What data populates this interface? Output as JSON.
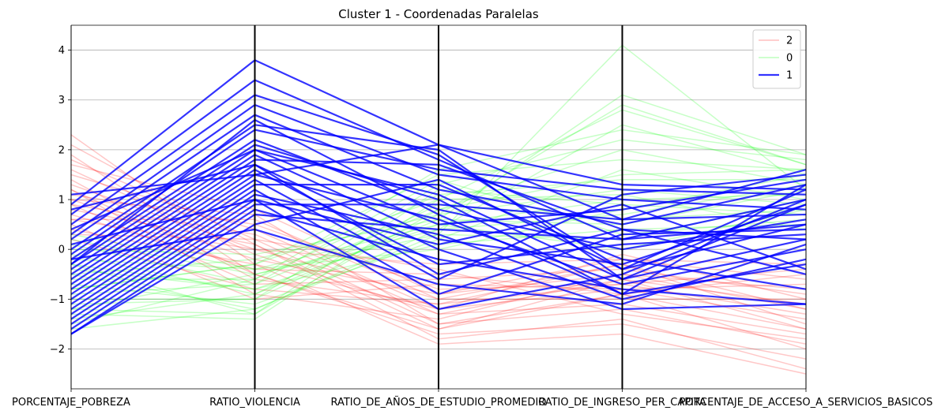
{
  "chart_data": {
    "type": "line",
    "subtype": "parallel-coordinates",
    "title": "Cluster 1 - Coordenadas Paralelas",
    "axes": [
      "PORCENTAJE_POBREZA",
      "RATIO_VIOLENCIA",
      "RATIO_DE_AÑOS_DE_ESTUDIO_PROMEDIO",
      "RATIO_DE_INGRESO_PER_CAPITA",
      "PORCENTAJE_DE_ACCESO_A_SERVICIOS_BASICOS"
    ],
    "ylim": [
      -2.8,
      4.5
    ],
    "yticks": [
      -2,
      -1,
      0,
      1,
      2,
      3,
      4
    ],
    "grid": "horizontal",
    "legend_position": "top-right",
    "series": [
      {
        "name": "2",
        "color": "#ff0000",
        "opacity": 0.22,
        "emphasized": false,
        "lines": [
          [
            2.3,
            -0.3,
            -1.9,
            -1.7,
            -2.5
          ],
          [
            2.1,
            0.1,
            -1.8,
            -1.4,
            -2.4
          ],
          [
            1.9,
            -0.5,
            -1.6,
            -0.9,
            -2.0
          ],
          [
            1.8,
            0.2,
            -1.5,
            -1.2,
            -1.9
          ],
          [
            1.6,
            -0.1,
            -1.3,
            -0.6,
            -1.6
          ],
          [
            1.5,
            0.4,
            -1.2,
            -0.8,
            -1.4
          ],
          [
            1.4,
            -0.6,
            -1.1,
            -0.3,
            -1.2
          ],
          [
            1.3,
            0.0,
            -1.0,
            -1.0,
            -1.0
          ],
          [
            1.2,
            -0.9,
            -1.4,
            -0.5,
            -0.8
          ],
          [
            1.1,
            0.5,
            -0.8,
            -0.7,
            -1.3
          ],
          [
            1.0,
            -0.2,
            -0.9,
            -0.2,
            -0.6
          ],
          [
            0.9,
            0.3,
            -1.3,
            -1.1,
            -1.7
          ],
          [
            0.9,
            -0.7,
            -0.6,
            -0.4,
            -0.9
          ],
          [
            0.8,
            0.1,
            -1.6,
            -0.6,
            -1.1
          ],
          [
            0.7,
            -0.4,
            -0.5,
            -0.9,
            -0.5
          ],
          [
            0.6,
            0.6,
            -1.0,
            -0.3,
            -1.5
          ],
          [
            0.5,
            -1.0,
            -0.7,
            -0.8,
            -0.7
          ],
          [
            0.4,
            -0.3,
            -1.2,
            -0.1,
            -1.0
          ],
          [
            0.3,
            0.2,
            -0.4,
            -1.3,
            -1.8
          ],
          [
            0.2,
            -0.8,
            -1.1,
            -0.7,
            -0.4
          ],
          [
            1.7,
            0.8,
            -0.9,
            -0.5,
            -1.2
          ],
          [
            1.2,
            -0.5,
            -1.7,
            -1.5,
            -2.2
          ],
          [
            0.6,
            0.0,
            -0.3,
            -0.2,
            -0.3
          ],
          [
            1.0,
            0.7,
            -1.5,
            -0.9,
            -1.6
          ]
        ]
      },
      {
        "name": "0",
        "color": "#00ff00",
        "opacity": 0.22,
        "emphasized": false,
        "lines": [
          [
            -1.6,
            -1.2,
            0.3,
            4.1,
            1.2
          ],
          [
            -1.4,
            -0.9,
            0.6,
            3.1,
            1.9
          ],
          [
            -1.3,
            -1.4,
            1.0,
            2.8,
            1.7
          ],
          [
            -1.2,
            -0.5,
            0.4,
            2.5,
            1.5
          ],
          [
            -1.0,
            -1.0,
            1.3,
            2.2,
            1.8
          ],
          [
            -0.9,
            -0.7,
            0.8,
            2.0,
            1.3
          ],
          [
            -0.8,
            -0.3,
            1.5,
            1.8,
            1.6
          ],
          [
            -0.7,
            -1.1,
            0.2,
            1.6,
            1.0
          ],
          [
            -0.6,
            -0.6,
            1.1,
            1.4,
            1.4
          ],
          [
            -0.5,
            -0.2,
            0.7,
            1.2,
            0.9
          ],
          [
            -0.4,
            -0.8,
            0.5,
            1.0,
            1.1
          ],
          [
            -0.3,
            -1.3,
            1.2,
            0.9,
            0.7
          ],
          [
            -0.2,
            -0.4,
            0.0,
            0.8,
            1.5
          ],
          [
            -0.1,
            -0.9,
            0.9,
            0.6,
            0.8
          ],
          [
            0.0,
            -0.1,
            0.6,
            0.5,
            1.2
          ],
          [
            0.1,
            -0.7,
            1.4,
            0.3,
            0.6
          ],
          [
            0.2,
            -0.5,
            0.3,
            0.2,
            1.0
          ],
          [
            -1.1,
            -1.0,
            0.7,
            2.9,
            1.7
          ],
          [
            -0.8,
            -0.3,
            1.0,
            1.1,
            0.4
          ],
          [
            -0.5,
            -1.2,
            0.4,
            0.7,
            1.3
          ],
          [
            -1.5,
            -0.6,
            1.6,
            2.4,
            1.9
          ],
          [
            -0.3,
            -0.8,
            0.1,
            0.4,
            0.5
          ],
          [
            -1.2,
            -1.3,
            0.8,
            1.5,
            1.6
          ],
          [
            0.3,
            -0.4,
            0.5,
            0.0,
            0.8
          ]
        ]
      },
      {
        "name": "1",
        "color": "#0000ff",
        "opacity": 0.8,
        "emphasized": true,
        "lines": [
          [
            1.1,
            1.5,
            2.1,
            1.3,
            1.2
          ],
          [
            0.9,
            3.8,
            2.1,
            0.6,
            1.6
          ],
          [
            0.7,
            3.4,
            1.8,
            0.2,
            1.0
          ],
          [
            0.5,
            3.1,
            1.9,
            -0.4,
            0.5
          ],
          [
            0.3,
            2.9,
            1.5,
            1.0,
            0.8
          ],
          [
            0.2,
            2.7,
            1.2,
            0.5,
            1.3
          ],
          [
            0.0,
            2.5,
            2.0,
            -0.6,
            0.2
          ],
          [
            -0.1,
            2.4,
            1.6,
            1.2,
            1.1
          ],
          [
            -0.2,
            2.2,
            0.8,
            0.0,
            0.6
          ],
          [
            -0.3,
            2.1,
            1.0,
            -0.9,
            -0.3
          ],
          [
            -0.4,
            2.0,
            0.5,
            0.8,
            1.4
          ],
          [
            -0.5,
            1.9,
            0.2,
            -0.3,
            0.9
          ],
          [
            -0.6,
            1.8,
            1.7,
            0.4,
            -0.5
          ],
          [
            -0.7,
            1.7,
            0.0,
            -1.2,
            -1.1
          ],
          [
            -0.8,
            1.6,
            -0.3,
            0.1,
            0.3
          ],
          [
            -0.9,
            1.5,
            0.6,
            -0.7,
            0.0
          ],
          [
            -1.0,
            1.4,
            -0.6,
            1.1,
            1.5
          ],
          [
            -1.1,
            1.3,
            1.3,
            -0.2,
            -0.8
          ],
          [
            -1.2,
            1.2,
            -0.9,
            0.3,
            0.4
          ],
          [
            -1.3,
            1.1,
            0.3,
            -1.0,
            -0.2
          ],
          [
            -1.4,
            1.0,
            -1.2,
            -0.5,
            1.0
          ],
          [
            -1.5,
            0.9,
            0.9,
            0.6,
            0.7
          ],
          [
            -1.6,
            0.8,
            -0.2,
            -0.8,
            -1.1
          ],
          [
            -1.7,
            0.7,
            0.4,
            0.2,
            0.5
          ],
          [
            -1.7,
            0.5,
            1.4,
            -0.4,
            1.2
          ],
          [
            -0.2,
            0.4,
            -0.7,
            -1.1,
            0.1
          ],
          [
            0.1,
            1.0,
            0.1,
            0.9,
            -0.4
          ],
          [
            0.4,
            2.0,
            1.1,
            -0.6,
            0.9
          ],
          [
            0.8,
            1.7,
            -0.5,
            0.4,
            0.2
          ],
          [
            -0.3,
            2.6,
            0.7,
            -0.9,
            1.3
          ]
        ]
      }
    ]
  }
}
